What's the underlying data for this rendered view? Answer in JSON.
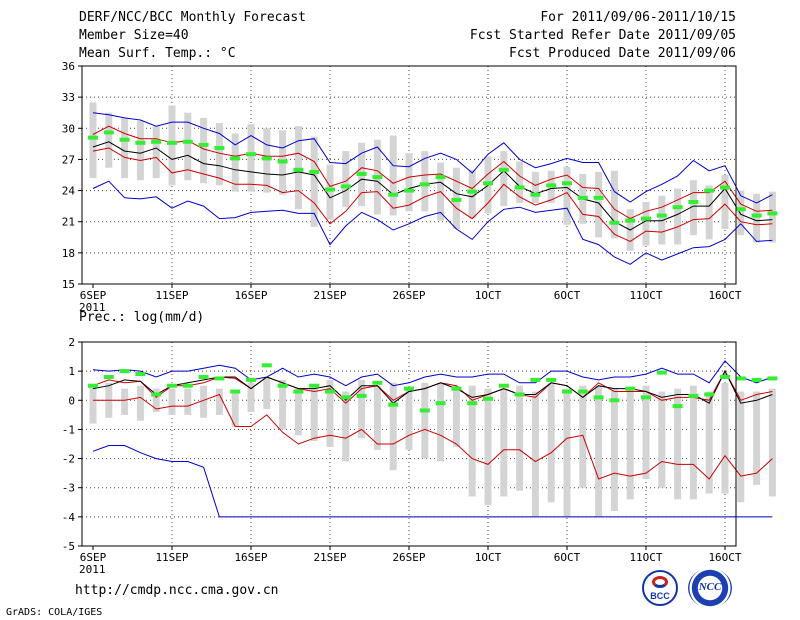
{
  "header": {
    "title": "DERF/NCC/BCC Monthly Forecast",
    "member_size": "Member Size=40",
    "variable": "Mean Surf. Temp.: °C",
    "period": "For 2011/09/06-2011/10/15",
    "started": "Fcst Started Refer Date 2011/09/05",
    "produced": "Fcst Produced Date 2011/09/06"
  },
  "footer": {
    "url": "http://cmdp.ncc.cma.gov.cn",
    "grads": "GrADS: COLA/IGES",
    "logo_left": "BCC",
    "logo_right": "NCC"
  },
  "colors": {
    "max": "#0000cc",
    "min": "#0000cc",
    "upper": "#cc0000",
    "lower": "#cc0000",
    "median": "#000000",
    "box": "#d4d4d4",
    "obs": "#33ee33"
  },
  "chart_data": [
    {
      "type": "line",
      "title": "Mean Surf. Temp.: °C",
      "xlabel": "",
      "ylabel": "°C",
      "ylim": [
        15,
        36
      ],
      "yticks": [
        15,
        18,
        21,
        24,
        27,
        30,
        33,
        36
      ],
      "xticks": [
        {
          "day": 0,
          "label": "6SEP"
        },
        {
          "day": 5,
          "label": "11SEP"
        },
        {
          "day": 10,
          "label": "16SEP"
        },
        {
          "day": 15,
          "label": "21SEP"
        },
        {
          "day": 20,
          "label": "26SEP"
        },
        {
          "day": 25,
          "label": "1OCT"
        },
        {
          "day": 30,
          "label": "6OCT"
        },
        {
          "day": 35,
          "label": "11OCT"
        },
        {
          "day": 40,
          "label": "16OCT"
        }
      ],
      "year_label": "2011",
      "grid": true,
      "days": 40,
      "series": [
        {
          "name": "max",
          "values": [
            31.5,
            31.3,
            31.0,
            30.8,
            30.2,
            30.6,
            30.6,
            30.0,
            29.5,
            28.4,
            29.3,
            28.4,
            28.1,
            28.8,
            29.0,
            26.7,
            26.6,
            27.6,
            28.2,
            26.4,
            26.3,
            27.1,
            27.6,
            27.0,
            25.7,
            27.5,
            28.6,
            27.0,
            26.2,
            26.6,
            27.1,
            26.7,
            26.7,
            23.9,
            22.9,
            23.9,
            24.6,
            25.4,
            26.9,
            25.9,
            26.4,
            23.5,
            22.8,
            23.6
          ]
        },
        {
          "name": "upper",
          "values": [
            29.4,
            30.2,
            29.5,
            29.0,
            29.0,
            28.6,
            28.8,
            28.0,
            27.6,
            27.3,
            27.6,
            27.3,
            27.3,
            27.6,
            26.8,
            24.4,
            24.9,
            26.2,
            25.9,
            24.7,
            25.3,
            25.5,
            25.6,
            24.9,
            24.2,
            25.6,
            26.8,
            25.4,
            24.5,
            25.1,
            25.5,
            24.3,
            24.2,
            22.2,
            21.3,
            22.0,
            22.4,
            23.1,
            23.8,
            23.8,
            24.9,
            22.7,
            22.0,
            22.1
          ]
        },
        {
          "name": "median",
          "values": [
            28.2,
            28.7,
            27.8,
            27.6,
            28.1,
            27.0,
            27.4,
            26.6,
            26.4,
            26.0,
            25.8,
            25.6,
            25.5,
            25.8,
            25.5,
            23.3,
            24.0,
            25.1,
            24.9,
            23.6,
            24.2,
            24.6,
            24.8,
            23.7,
            23.4,
            24.5,
            25.9,
            24.4,
            23.7,
            24.2,
            24.3,
            23.2,
            22.8,
            21.0,
            20.2,
            21.1,
            21.1,
            21.7,
            22.5,
            22.5,
            24.2,
            21.7,
            21.1,
            21.2
          ]
        },
        {
          "name": "lower",
          "values": [
            27.8,
            28.1,
            27.2,
            26.9,
            27.2,
            25.7,
            26.0,
            25.6,
            25.2,
            24.6,
            24.6,
            24.5,
            23.8,
            24.0,
            22.8,
            20.8,
            22.0,
            23.8,
            23.9,
            22.3,
            22.6,
            23.4,
            23.9,
            22.3,
            21.3,
            22.8,
            24.6,
            23.4,
            22.6,
            23.1,
            23.8,
            21.7,
            21.5,
            19.8,
            19.1,
            20.1,
            20.0,
            20.5,
            21.2,
            21.3,
            22.7,
            21.0,
            20.7,
            20.8
          ]
        },
        {
          "name": "min",
          "values": [
            24.2,
            24.9,
            23.3,
            23.2,
            23.4,
            22.3,
            23.0,
            22.5,
            21.3,
            21.4,
            21.9,
            22.0,
            22.1,
            21.8,
            21.8,
            18.8,
            20.6,
            21.9,
            21.2,
            20.2,
            20.8,
            21.5,
            21.9,
            20.3,
            19.3,
            21.0,
            22.2,
            22.4,
            21.9,
            22.1,
            22.3,
            19.3,
            18.8,
            17.6,
            16.9,
            18.0,
            17.3,
            17.9,
            18.5,
            18.6,
            19.3,
            20.8,
            19.1,
            19.2
          ]
        },
        {
          "name": "box_top",
          "values": [
            32.5,
            31.5,
            31.0,
            30.7,
            30.2,
            32.2,
            31.5,
            31.0,
            30.5,
            29.5,
            30.4,
            30.0,
            29.8,
            30.2,
            29.2,
            26.5,
            27.8,
            28.6,
            28.9,
            29.3,
            27.6,
            27.8,
            26.7,
            26.2,
            26.0,
            27.3,
            27.8,
            26.8,
            25.8,
            25.9,
            26.3,
            25.6,
            25.8,
            25.9,
            22.2,
            22.9,
            23.5,
            24.2,
            25.0,
            24.5,
            25.5,
            24.0,
            23.7,
            23.9
          ]
        },
        {
          "name": "box_bottom",
          "values": [
            25.2,
            26.2,
            25.2,
            25.0,
            25.2,
            24.5,
            25.0,
            24.7,
            24.5,
            23.9,
            23.9,
            23.8,
            23.6,
            22.2,
            20.5,
            21.2,
            22.4,
            22.5,
            21.7,
            21.6,
            22.0,
            22.0,
            21.1,
            20.3,
            21.3,
            21.8,
            22.5,
            22.8,
            22.8,
            22.8,
            20.7,
            20.8,
            19.5,
            19.4,
            18.2,
            18.7,
            18.8,
            18.8,
            19.7,
            19.3,
            20.3,
            19.7,
            19.0,
            19.0
          ]
        },
        {
          "name": "observed",
          "values": [
            29.1,
            29.6,
            28.9,
            28.6,
            28.7,
            28.6,
            28.7,
            28.4,
            28.1,
            27.1,
            27.5,
            27.1,
            26.8,
            26.0,
            25.8,
            24.1,
            24.4,
            25.6,
            25.3,
            23.6,
            24.0,
            24.6,
            25.3,
            23.1,
            23.9,
            24.7,
            26.0,
            24.3,
            23.6,
            24.5,
            24.7,
            23.3,
            23.3,
            20.9,
            21.1,
            21.3,
            21.6,
            22.4,
            22.9,
            24.0,
            24.3,
            22.2,
            21.6,
            21.8
          ]
        }
      ]
    },
    {
      "type": "line",
      "title": "Prec.: log(mm/d)",
      "xlabel": "",
      "ylabel": "log(mm/d)",
      "ylim": [
        -5,
        2
      ],
      "yticks": [
        -5,
        -4,
        -3,
        -2,
        -1,
        0,
        1,
        2
      ],
      "xticks": [
        {
          "day": 0,
          "label": "6SEP"
        },
        {
          "day": 5,
          "label": "11SEP"
        },
        {
          "day": 10,
          "label": "16SEP"
        },
        {
          "day": 15,
          "label": "21SEP"
        },
        {
          "day": 20,
          "label": "26SEP"
        },
        {
          "day": 25,
          "label": "1OCT"
        },
        {
          "day": 30,
          "label": "6OCT"
        },
        {
          "day": 35,
          "label": "11OCT"
        },
        {
          "day": 40,
          "label": "16OCT"
        }
      ],
      "year_label": "2011",
      "grid": true,
      "days": 40,
      "series": [
        {
          "name": "max",
          "values": [
            1.05,
            1.0,
            1.05,
            1.0,
            0.8,
            1.0,
            1.0,
            1.1,
            1.2,
            1.1,
            0.7,
            0.8,
            1.1,
            0.8,
            0.9,
            0.8,
            0.5,
            0.8,
            0.9,
            0.5,
            0.6,
            0.8,
            0.9,
            0.8,
            0.8,
            0.9,
            0.9,
            0.6,
            0.6,
            1.0,
            1.0,
            0.8,
            0.7,
            0.8,
            0.8,
            0.9,
            1.1,
            0.9,
            0.9,
            0.6,
            1.35,
            0.8,
            0.6,
            0.8
          ]
        },
        {
          "name": "upper",
          "values": [
            0.5,
            0.7,
            0.6,
            0.65,
            0.1,
            0.5,
            0.5,
            0.6,
            0.8,
            0.75,
            0.4,
            0.8,
            0.6,
            0.4,
            0.3,
            0.4,
            -0.1,
            0.4,
            0.5,
            0.0,
            0.3,
            0.4,
            0.6,
            0.5,
            0.0,
            0.2,
            0.4,
            0.2,
            0.1,
            0.6,
            0.5,
            0.1,
            0.6,
            0.3,
            0.3,
            0.3,
            0.0,
            0.1,
            0.1,
            0.0,
            1.0,
            0.0,
            0.2,
            0.3
          ]
        },
        {
          "name": "median",
          "values": [
            0.4,
            0.5,
            0.7,
            0.65,
            0.2,
            0.5,
            0.6,
            0.7,
            0.8,
            0.8,
            0.4,
            0.8,
            0.6,
            0.4,
            0.4,
            0.5,
            0.0,
            0.5,
            0.5,
            -0.1,
            0.3,
            0.4,
            0.6,
            0.4,
            0.1,
            0.2,
            0.4,
            0.2,
            0.2,
            0.6,
            0.5,
            0.1,
            0.5,
            0.4,
            0.4,
            0.3,
            0.1,
            0.2,
            0.2,
            -0.1,
            1.0,
            -0.1,
            0.0,
            0.2
          ]
        },
        {
          "name": "lower",
          "values": [
            0.0,
            0.0,
            0.0,
            0.1,
            -0.3,
            -0.2,
            -0.2,
            0.0,
            0.2,
            -0.9,
            -0.9,
            -0.5,
            -1.1,
            -1.5,
            -1.3,
            -1.2,
            -1.3,
            -1.0,
            -1.5,
            -1.5,
            -1.2,
            -1.0,
            -1.2,
            -1.5,
            -2.0,
            -2.2,
            -1.7,
            -1.7,
            -2.1,
            -1.8,
            -1.3,
            -1.2,
            -2.7,
            -2.5,
            -2.6,
            -2.5,
            -2.1,
            -2.2,
            -2.2,
            -2.7,
            -1.9,
            -2.6,
            -2.5,
            -2.0
          ]
        },
        {
          "name": "min",
          "values": [
            -1.75,
            -1.55,
            -1.55,
            -1.8,
            -2.0,
            -2.1,
            -2.1,
            -2.3,
            -4.0,
            -4.0,
            -4.0,
            -4.0,
            -4.0,
            -4.0,
            -4.0,
            -4.0,
            -4.0,
            -4.0,
            -4.0,
            -4.0,
            -4.0,
            -4.0,
            -4.0,
            -4.0,
            -4.0,
            -4.0,
            -4.0,
            -4.0,
            -4.0,
            -4.0,
            -4.0,
            -4.0,
            -4.0,
            -4.0,
            -4.0,
            -4.0,
            -4.0,
            -4.0,
            -4.0,
            -4.0,
            -4.0,
            -4.0,
            -4.0,
            -4.0
          ]
        },
        {
          "name": "box_top",
          "values": [
            0.5,
            0.6,
            0.4,
            0.5,
            0.4,
            0.4,
            0.4,
            0.5,
            0.4,
            0.3,
            0.6,
            0.8,
            0.7,
            0.4,
            0.4,
            0.7,
            0.3,
            0.7,
            0.5,
            0.6,
            0.4,
            0.6,
            0.6,
            0.5,
            0.5,
            0.4,
            0.4,
            0.5,
            0.3,
            0.6,
            0.4,
            0.5,
            0.5,
            0.4,
            0.4,
            0.5,
            0.3,
            0.4,
            0.5,
            0.3,
            0.6,
            0.3,
            0.3,
            0.4
          ]
        },
        {
          "name": "box_bottom",
          "values": [
            -0.8,
            -0.6,
            -0.5,
            -0.7,
            -0.4,
            -0.5,
            -0.5,
            -0.6,
            -0.5,
            -0.9,
            -0.4,
            -0.3,
            -1.0,
            -1.2,
            -1.4,
            -1.6,
            -2.1,
            -1.3,
            -1.7,
            -2.4,
            -1.7,
            -2.0,
            -2.1,
            -1.6,
            -3.3,
            -3.6,
            -3.3,
            -3.1,
            -4.0,
            -3.5,
            -4.0,
            -3.0,
            -4.0,
            -3.8,
            -3.4,
            -2.7,
            -3.0,
            -3.4,
            -3.4,
            -3.2,
            -3.2,
            -3.5,
            -2.9,
            -3.3
          ]
        },
        {
          "name": "observed",
          "values": [
            0.5,
            0.8,
            1.0,
            0.9,
            0.2,
            0.5,
            0.5,
            0.8,
            0.75,
            0.3,
            0.7,
            1.2,
            0.5,
            0.3,
            0.5,
            0.3,
            0.1,
            0.15,
            0.6,
            -0.15,
            0.4,
            -0.35,
            -0.1,
            0.4,
            -0.1,
            0.05,
            0.5,
            0.2,
            0.7,
            0.7,
            0.3,
            0.3,
            0.1,
            0.0,
            0.4,
            0.1,
            0.95,
            -0.2,
            0.15,
            0.2,
            0.8,
            0.75,
            0.7,
            0.75
          ]
        }
      ]
    }
  ]
}
